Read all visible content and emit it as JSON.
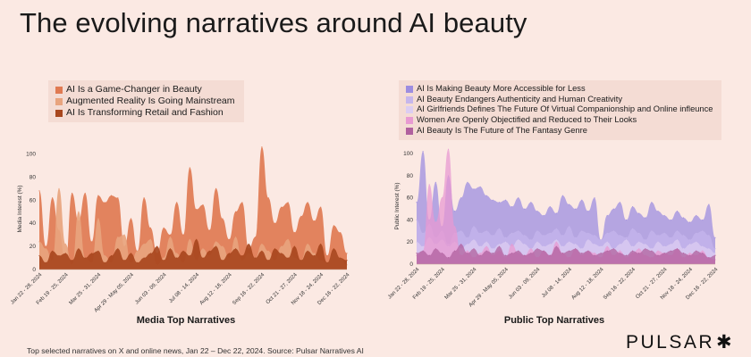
{
  "page": {
    "title": "The evolving narratives around AI beauty",
    "footnote": "Top selected narratives on X and online news, Jan 22 – Dec 22, 2024. Source: Pulsar Narratives AI",
    "brand": "PULSAR",
    "brand_mark": "✱"
  },
  "chart_data": [
    {
      "type": "area",
      "title": "Media Top Narratives",
      "xlabel": "",
      "ylabel": "Media Interest (%)",
      "ylim": [
        0,
        105
      ],
      "yticks": [
        0,
        20,
        40,
        60,
        80,
        100
      ],
      "xticks": [
        "Jan 22 - 28, 2024",
        "Feb 19 - 25, 2024",
        "Mar 25 - 31, 2024",
        "Apr 29 - May 05, 2024",
        "Jun 03 - 09, 2024",
        "Jul 08 - 14, 2024",
        "Aug 12 - 18, 2024",
        "Sep 16 - 22, 2024",
        "Oct 21 - 27, 2024",
        "Nov 18 - 24, 2024",
        "Dec 16 - 22, 2024"
      ],
      "tick_positions": [
        0,
        4,
        9,
        14,
        19,
        24,
        29,
        34,
        39,
        43,
        47
      ],
      "grid": false,
      "legend": "top-left",
      "x": [
        "Jan 22 - 28, 2024",
        "Jan 29 - Feb 04, 2024",
        "Feb 05 - 11, 2024",
        "Feb 12 - 18, 2024",
        "Feb 19 - 25, 2024",
        "Feb 26 - Mar 03, 2024",
        "Mar 04 - 10, 2024",
        "Mar 11 - 17, 2024",
        "Mar 18 - 24, 2024",
        "Mar 25 - 31, 2024",
        "Apr 01 - 07, 2024",
        "Apr 08 - 14, 2024",
        "Apr 15 - 21, 2024",
        "Apr 22 - 28, 2024",
        "Apr 29 - May 05, 2024",
        "May 06 - 12, 2024",
        "May 13 - 19, 2024",
        "May 20 - 26, 2024",
        "May 27 - Jun 02, 2024",
        "Jun 03 - 09, 2024",
        "Jun 10 - 16, 2024",
        "Jun 17 - 23, 2024",
        "Jun 24 - 30, 2024",
        "Jul 01 - 07, 2024",
        "Jul 08 - 14, 2024",
        "Jul 15 - 21, 2024",
        "Jul 22 - 28, 2024",
        "Jul 29 - Aug 04, 2024",
        "Aug 05 - 11, 2024",
        "Aug 12 - 18, 2024",
        "Aug 19 - 25, 2024",
        "Aug 26 - Sep 01, 2024",
        "Sep 02 - 08, 2024",
        "Sep 09 - 15, 2024",
        "Sep 16 - 22, 2024",
        "Sep 23 - 29, 2024",
        "Sep 30 - Oct 06, 2024",
        "Oct 07 - 13, 2024",
        "Oct 14 - 20, 2024",
        "Oct 21 - 27, 2024",
        "Oct 28 - Nov 03, 2024",
        "Nov 04 - 10, 2024",
        "Nov 11 - 17, 2024",
        "Nov 18 - 24, 2024",
        "Nov 25 - Dec 01, 2024",
        "Dec 02 - 08, 2024",
        "Dec 09 - 15, 2024",
        "Dec 16 - 22, 2024"
      ],
      "series": [
        {
          "name": "AI Is a Game-Changer in Beauty",
          "color": "#e07a52",
          "values": [
            68,
            20,
            62,
            34,
            6,
            66,
            42,
            66,
            24,
            64,
            58,
            64,
            62,
            20,
            44,
            16,
            62,
            36,
            14,
            36,
            30,
            58,
            30,
            88,
            52,
            56,
            34,
            70,
            44,
            26,
            50,
            58,
            18,
            28,
            106,
            62,
            40,
            54,
            58,
            32,
            46,
            58,
            42,
            54,
            12,
            38,
            32,
            14
          ]
        },
        {
          "name": "Augmented Reality Is Going Mainstream",
          "color": "#e8a47e",
          "values": [
            24,
            18,
            8,
            70,
            22,
            4,
            50,
            10,
            6,
            44,
            12,
            6,
            28,
            30,
            6,
            16,
            22,
            26,
            4,
            10,
            28,
            14,
            6,
            26,
            8,
            18,
            12,
            24,
            20,
            10,
            28,
            8,
            14,
            10,
            22,
            16,
            8,
            20,
            26,
            10,
            8,
            22,
            14,
            8,
            6,
            16,
            10,
            4
          ]
        },
        {
          "name": "AI Is Transforming Retail and Fashion",
          "color": "#a8471e",
          "values": [
            12,
            6,
            16,
            12,
            14,
            8,
            18,
            10,
            14,
            16,
            6,
            12,
            18,
            8,
            14,
            6,
            10,
            14,
            20,
            8,
            18,
            10,
            16,
            12,
            26,
            10,
            16,
            20,
            8,
            14,
            18,
            12,
            22,
            10,
            16,
            8,
            18,
            14,
            10,
            20,
            8,
            16,
            12,
            22,
            6,
            18,
            10,
            8
          ]
        }
      ]
    },
    {
      "type": "area",
      "title": "Public Top Narratives",
      "xlabel": "",
      "ylabel": "Public Interest (%)",
      "ylim": [
        0,
        105
      ],
      "yticks": [
        0,
        20,
        40,
        60,
        80,
        100
      ],
      "xticks": [
        "Jan 22 - 28, 2024",
        "Feb 19 - 25, 2024",
        "Mar 25 - 31, 2024",
        "Apr 29 - May 05, 2024",
        "Jun 03 - 09, 2024",
        "Jul 08 - 14, 2024",
        "Aug 12 - 18, 2024",
        "Sep 16 - 22, 2024",
        "Oct 21 - 27, 2024",
        "Nov 18 - 24, 2024",
        "Dec 16 - 22, 2024"
      ],
      "tick_positions": [
        0,
        4,
        9,
        14,
        19,
        24,
        29,
        34,
        39,
        43,
        47
      ],
      "grid": false,
      "legend": "top-left",
      "x": [
        "Jan 22 - 28, 2024",
        "Jan 29 - Feb 04, 2024",
        "Feb 05 - 11, 2024",
        "Feb 12 - 18, 2024",
        "Feb 19 - 25, 2024",
        "Feb 26 - Mar 03, 2024",
        "Mar 04 - 10, 2024",
        "Mar 11 - 17, 2024",
        "Mar 18 - 24, 2024",
        "Mar 25 - 31, 2024",
        "Apr 01 - 07, 2024",
        "Apr 08 - 14, 2024",
        "Apr 15 - 21, 2024",
        "Apr 22 - 28, 2024",
        "Apr 29 - May 05, 2024",
        "May 06 - 12, 2024",
        "May 13 - 19, 2024",
        "May 20 - 26, 2024",
        "May 27 - Jun 02, 2024",
        "Jun 03 - 09, 2024",
        "Jun 10 - 16, 2024",
        "Jun 17 - 23, 2024",
        "Jun 24 - 30, 2024",
        "Jul 01 - 07, 2024",
        "Jul 08 - 14, 2024",
        "Jul 15 - 21, 2024",
        "Jul 22 - 28, 2024",
        "Jul 29 - Aug 04, 2024",
        "Aug 05 - 11, 2024",
        "Aug 12 - 18, 2024",
        "Aug 19 - 25, 2024",
        "Aug 26 - Sep 01, 2024",
        "Sep 02 - 08, 2024",
        "Sep 09 - 15, 2024",
        "Sep 16 - 22, 2024",
        "Sep 23 - 29, 2024",
        "Sep 30 - Oct 06, 2024",
        "Oct 07 - 13, 2024",
        "Oct 14 - 20, 2024",
        "Oct 21 - 27, 2024",
        "Oct 28 - Nov 03, 2024",
        "Nov 04 - 10, 2024",
        "Nov 11 - 17, 2024",
        "Nov 18 - 24, 2024",
        "Nov 25 - Dec 01, 2024",
        "Dec 02 - 08, 2024",
        "Dec 09 - 15, 2024",
        "Dec 16 - 22, 2024"
      ],
      "series": [
        {
          "name": "AI Is Making Beauty More Accessible for Less",
          "color": "#9d8de0",
          "values": [
            56,
            102,
            40,
            74,
            34,
            80,
            48,
            60,
            74,
            68,
            70,
            62,
            58,
            56,
            58,
            52,
            60,
            50,
            56,
            48,
            44,
            52,
            46,
            62,
            54,
            50,
            58,
            48,
            60,
            22,
            44,
            50,
            56,
            40,
            52,
            46,
            42,
            56,
            48,
            44,
            40,
            48,
            42,
            38,
            44,
            40,
            54,
            24
          ]
        },
        {
          "name": "AI Beauty Endangers Authenticity and Human Creativity",
          "color": "#c6b6ec",
          "values": [
            40,
            28,
            36,
            24,
            30,
            18,
            28,
            30,
            24,
            34,
            28,
            30,
            26,
            32,
            24,
            28,
            30,
            26,
            22,
            30,
            26,
            28,
            32,
            26,
            34,
            24,
            30,
            28,
            26,
            22,
            28,
            30,
            26,
            24,
            32,
            28,
            22,
            30,
            26,
            28,
            24,
            30,
            26,
            22,
            28,
            30,
            26,
            14
          ]
        },
        {
          "name": "AI Girlfriends Defines The Future Of Virtual Companionship and Online infleunce",
          "color": "#dccdf2",
          "values": [
            20,
            16,
            24,
            18,
            22,
            16,
            20,
            14,
            18,
            22,
            16,
            20,
            14,
            18,
            20,
            16,
            22,
            18,
            14,
            20,
            16,
            18,
            22,
            16,
            20,
            18,
            14,
            22,
            18,
            16,
            20,
            14,
            18,
            22,
            16,
            20,
            18,
            14,
            20,
            16,
            18,
            22,
            14,
            18,
            20,
            16,
            14,
            10
          ]
        },
        {
          "name": "Women Are Openly Objectified and Reduced to Their Looks",
          "color": "#e89ad2",
          "values": [
            8,
            12,
            72,
            38,
            60,
            104,
            34,
            8,
            12,
            6,
            10,
            16,
            8,
            12,
            6,
            18,
            10,
            8,
            14,
            6,
            12,
            8,
            20,
            10,
            6,
            14,
            8,
            12,
            10,
            6,
            16,
            8,
            12,
            6,
            10,
            14,
            8,
            6,
            12,
            10,
            8,
            14,
            6,
            10,
            8,
            12,
            6,
            4
          ]
        },
        {
          "name": "AI Beauty Is The Future of The Fantasy Genre",
          "color": "#b0609e",
          "values": [
            10,
            12,
            8,
            14,
            10,
            6,
            12,
            18,
            10,
            14,
            8,
            12,
            10,
            16,
            8,
            10,
            12,
            8,
            10,
            14,
            12,
            8,
            16,
            10,
            12,
            14,
            10,
            12,
            8,
            10,
            12,
            14,
            10,
            8,
            12,
            10,
            14,
            12,
            8,
            10,
            12,
            14,
            10,
            8,
            12,
            10,
            6,
            8
          ]
        }
      ]
    }
  ]
}
